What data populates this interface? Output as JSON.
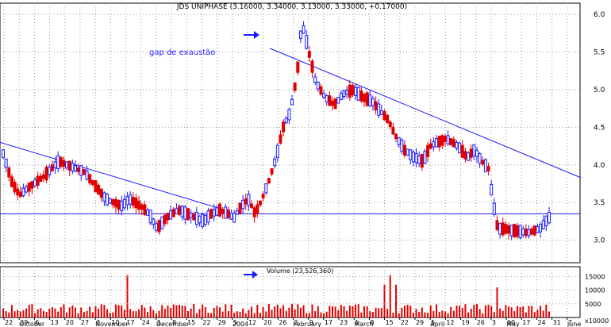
{
  "chart_data": [
    {
      "type": "candlestick",
      "title": "JDS UNIPHASE (3.16000, 3.34000, 3.13000, 3.33000, +0.17000)",
      "annotation": "gap de exaustão",
      "ylim": [
        2.7,
        6.15
      ],
      "y_ticks": [
        "6.0",
        "5.5",
        "5.0",
        "4.5",
        "4.0",
        "3.5",
        "3.0"
      ],
      "y_tick_values": [
        6.0,
        5.5,
        5.0,
        4.5,
        4.0,
        3.5,
        3.0
      ],
      "x_tick_labels": [
        "22",
        "29",
        "6",
        "13",
        "20",
        "27",
        "3",
        "10",
        "17",
        "24",
        "1",
        "8",
        "15",
        "22",
        "29",
        "5",
        "12",
        "20",
        "26",
        "2",
        "9",
        "17",
        "23",
        "1",
        "8",
        "15",
        "22",
        "29",
        "5",
        "12",
        "19",
        "26",
        "3",
        "10",
        "17",
        "24",
        "31",
        "7"
      ],
      "month_labels": [
        "October",
        "November",
        "December",
        "2004",
        "February",
        "March",
        "April",
        "May",
        "June"
      ],
      "horizontal_line": 3.35,
      "trendlines": [
        {
          "name": "downtrend-1",
          "from": [
            0,
            4.3
          ],
          "to": [
            290,
            3.38
          ]
        },
        {
          "name": "downtrend-2",
          "from": [
            340,
            5.55
          ],
          "to": [
            732,
            3.83
          ]
        }
      ],
      "candles": []
    },
    {
      "type": "bar",
      "title": "Volume (23,526,360)",
      "y_ticks": [
        "15000",
        "10000",
        "5000",
        "x10000"
      ],
      "y_tick_values": [
        15000,
        10000,
        5000
      ],
      "ylim": [
        0,
        18000
      ],
      "values": []
    }
  ],
  "colors": {
    "up": "#1a1aff",
    "down": "#e00000",
    "trendline": "#1a1aff",
    "support": "#1a1aff",
    "grid": "#9a9a9a",
    "volume": "#e00000"
  }
}
